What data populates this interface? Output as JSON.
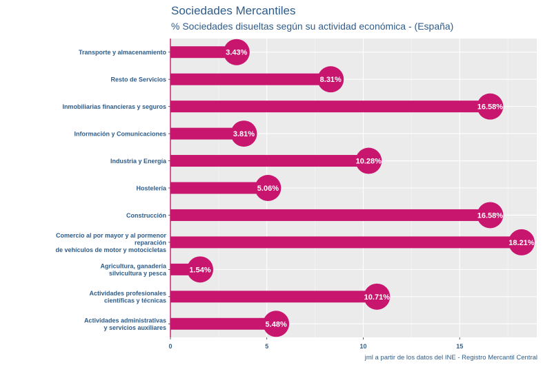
{
  "chart_data": {
    "type": "bar",
    "orientation": "horizontal",
    "title": "Sociedades Mercantiles",
    "subtitle": "% Sociedades disueltas según su actividad económica - (España)",
    "caption": "jml a partir de los datos del INE - Registro Mercantil Central",
    "xlabel": "",
    "ylabel": "",
    "xlim": [
      0,
      19
    ],
    "xticks": [
      0,
      5,
      10,
      15
    ],
    "categories": [
      [
        "Transporte y almacenamiento"
      ],
      [
        "Resto de Servicios"
      ],
      [
        "Inmobiliarias financieras y seguros"
      ],
      [
        "Información y Comunicaciones"
      ],
      [
        "Industria y Energía"
      ],
      [
        "Hostelería"
      ],
      [
        "Construcción"
      ],
      [
        "Comercio al por mayor y al pormenor",
        "reparación",
        "de vehículos de motor y motocicletas"
      ],
      [
        "Agricultura, ganadería",
        "silvicultura y pesca"
      ],
      [
        "Actividades profesionales",
        "científicas y técnicas"
      ],
      [
        "Actividades administrativas",
        "y servicios auxiliares"
      ]
    ],
    "values": [
      3.43,
      8.31,
      16.58,
      3.81,
      10.28,
      5.06,
      16.58,
      18.21,
      1.54,
      10.71,
      5.48
    ],
    "value_labels": [
      "3.43%",
      "8.31%",
      "16.58%",
      "3.81%",
      "10.28%",
      "5.06%",
      "16.58%",
      "18.21%",
      "1.54%",
      "10.71%",
      "5.48%"
    ],
    "bar_color": "#c8166e",
    "panel_color": "#ebebeb",
    "grid": true
  }
}
